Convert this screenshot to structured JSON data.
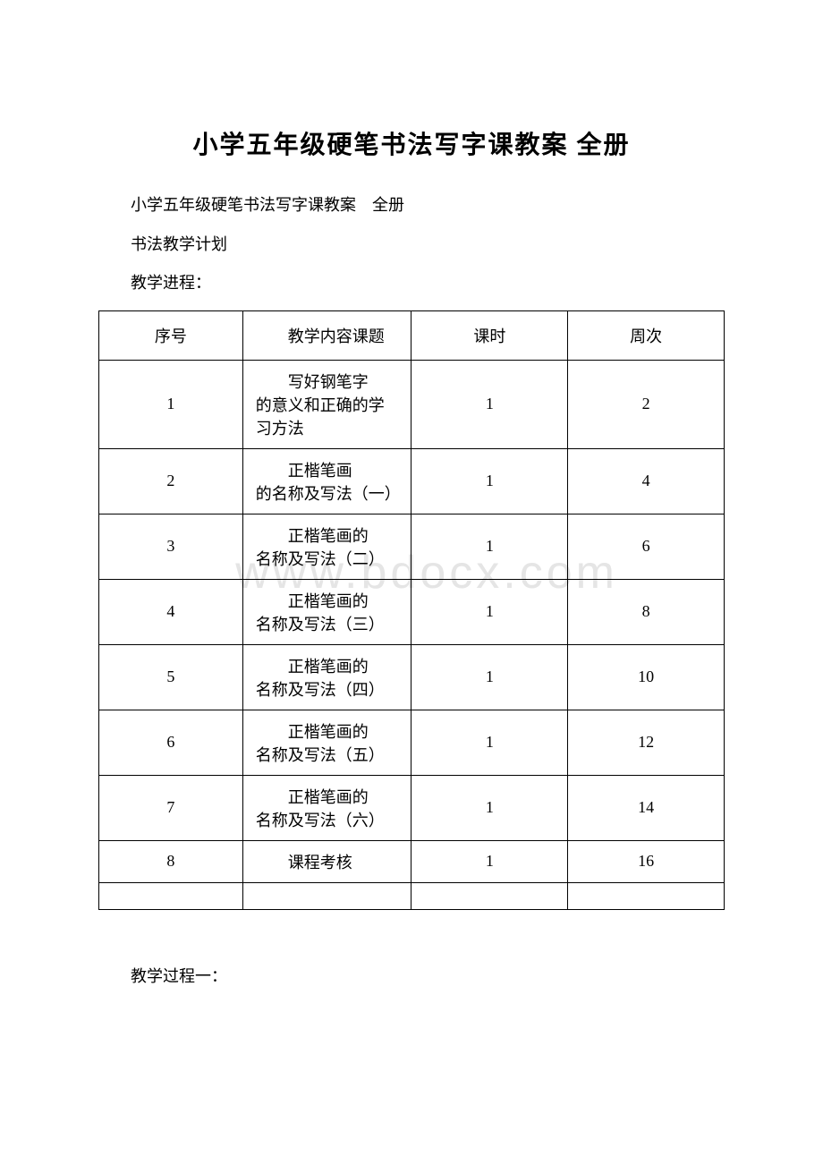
{
  "document": {
    "title": "小学五年级硬笔书法写字课教案 全册",
    "line1": "小学五年级硬笔书法写字课教案　全册",
    "line2": "书法教学计划",
    "line3": "教学进程：",
    "footer": "教学过程一："
  },
  "watermark": "www.bdocx.com",
  "table": {
    "type": "table",
    "columns": [
      "序号",
      "教学内容课题",
      "课时",
      "周次"
    ],
    "col_widths_percent": [
      23,
      27,
      25,
      25
    ],
    "col_alignment": [
      "center",
      "left",
      "center",
      "center"
    ],
    "border_color": "#000000",
    "background_color": "#ffffff",
    "font_size_pt": 14,
    "rows": [
      {
        "seq": "1",
        "topic_first": "写好钢笔字",
        "topic_rest": "的意义和正确的学习方法",
        "hours": "1",
        "week": "2"
      },
      {
        "seq": "2",
        "topic_first": "正楷笔画",
        "topic_rest": "的名称及写法（一）",
        "hours": "1",
        "week": "4"
      },
      {
        "seq": "3",
        "topic_first": "正楷笔画的",
        "topic_rest": "名称及写法（二）",
        "hours": "1",
        "week": "6"
      },
      {
        "seq": "4",
        "topic_first": "正楷笔画的",
        "topic_rest": "名称及写法（三）",
        "hours": "1",
        "week": "8"
      },
      {
        "seq": "5",
        "topic_first": "正楷笔画的",
        "topic_rest": "名称及写法（四）",
        "hours": "1",
        "week": "10"
      },
      {
        "seq": "6",
        "topic_first": "正楷笔画的",
        "topic_rest": "名称及写法（五）",
        "hours": "1",
        "week": "12"
      },
      {
        "seq": "7",
        "topic_first": "正楷笔画的",
        "topic_rest": "名称及写法（六）",
        "hours": "1",
        "week": "14"
      },
      {
        "seq": "8",
        "topic_first": "课程考核",
        "topic_rest": "",
        "hours": "1",
        "week": "16"
      }
    ]
  }
}
